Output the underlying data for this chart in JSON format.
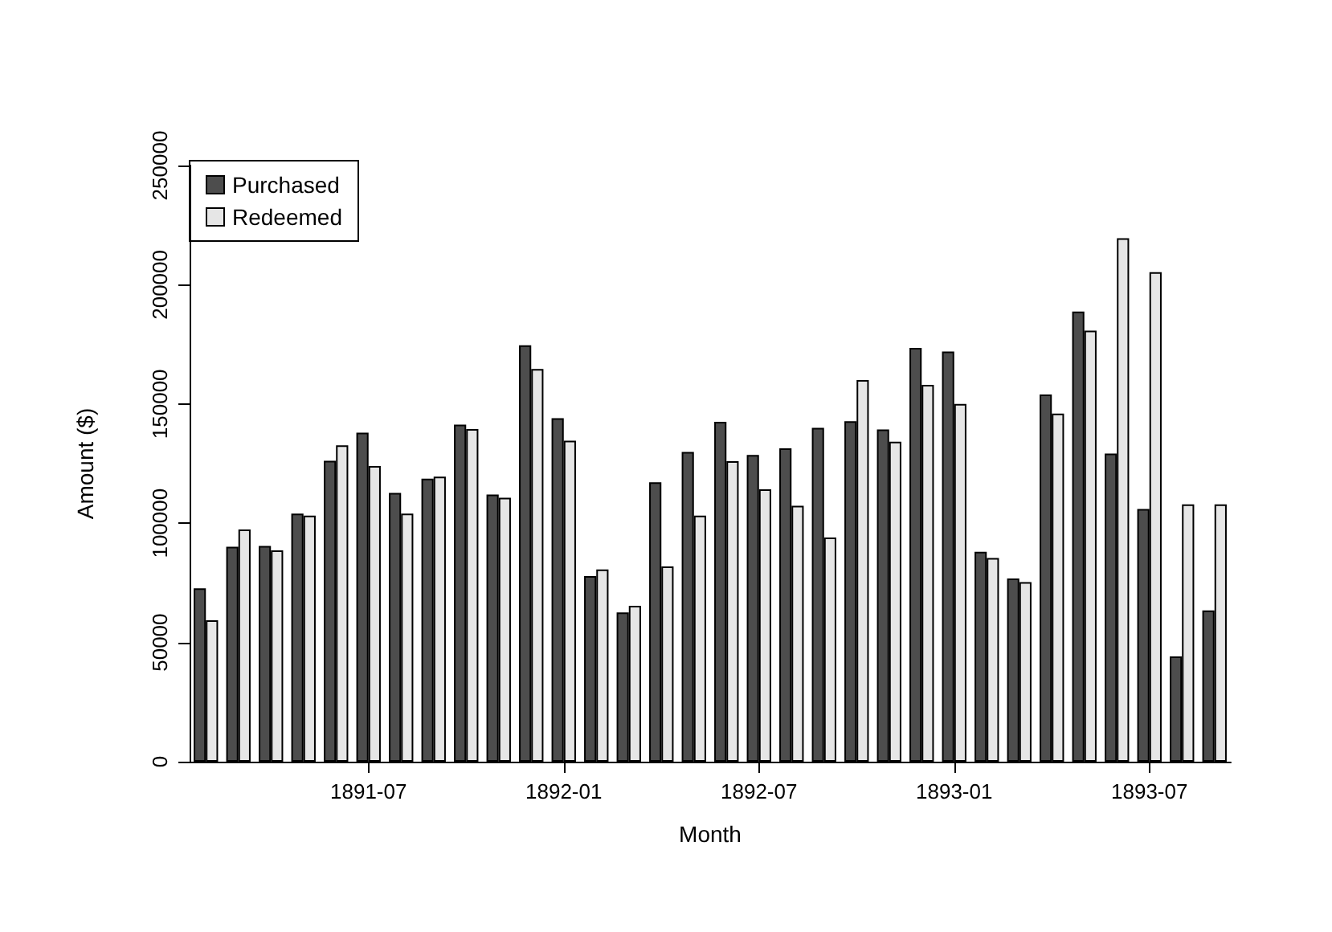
{
  "chart_data": {
    "type": "bar",
    "xlabel": "Month",
    "ylabel": "Amount ($)",
    "categories": [
      null,
      null,
      null,
      null,
      null,
      "1891-07",
      null,
      null,
      null,
      null,
      null,
      "1892-01",
      null,
      null,
      null,
      null,
      null,
      "1892-07",
      null,
      null,
      null,
      null,
      null,
      "1893-01",
      null,
      null,
      null,
      null,
      null,
      "1893-07",
      null,
      null
    ],
    "series": [
      {
        "name": "Purchased",
        "color": "#4d4d4d",
        "values": [
          72700,
          90100,
          90500,
          104000,
          126200,
          138000,
          112700,
          118700,
          141300,
          112000,
          174600,
          144000,
          77800,
          62600,
          117200,
          129900,
          142500,
          128600,
          131400,
          140000,
          142800,
          139300,
          173500,
          172000,
          88000,
          76800,
          154000,
          188800,
          129200,
          106000,
          44100,
          63400
        ]
      },
      {
        "name": "Redeemed",
        "color": "#e6e6e6",
        "values": [
          59300,
          97400,
          88600,
          103200,
          132700,
          124000,
          104000,
          119500,
          139500,
          110700,
          164700,
          134600,
          80600,
          65400,
          81900,
          103200,
          126000,
          114200,
          107300,
          94000,
          160000,
          134200,
          158000,
          150000,
          85400,
          75300,
          146000,
          180800,
          219500,
          205300,
          107900,
          107900
        ]
      }
    ],
    "ylim": [
      0,
      250000
    ],
    "yticks": [
      0,
      50000,
      100000,
      150000,
      200000,
      250000
    ],
    "grid": false,
    "legend": "top left"
  }
}
